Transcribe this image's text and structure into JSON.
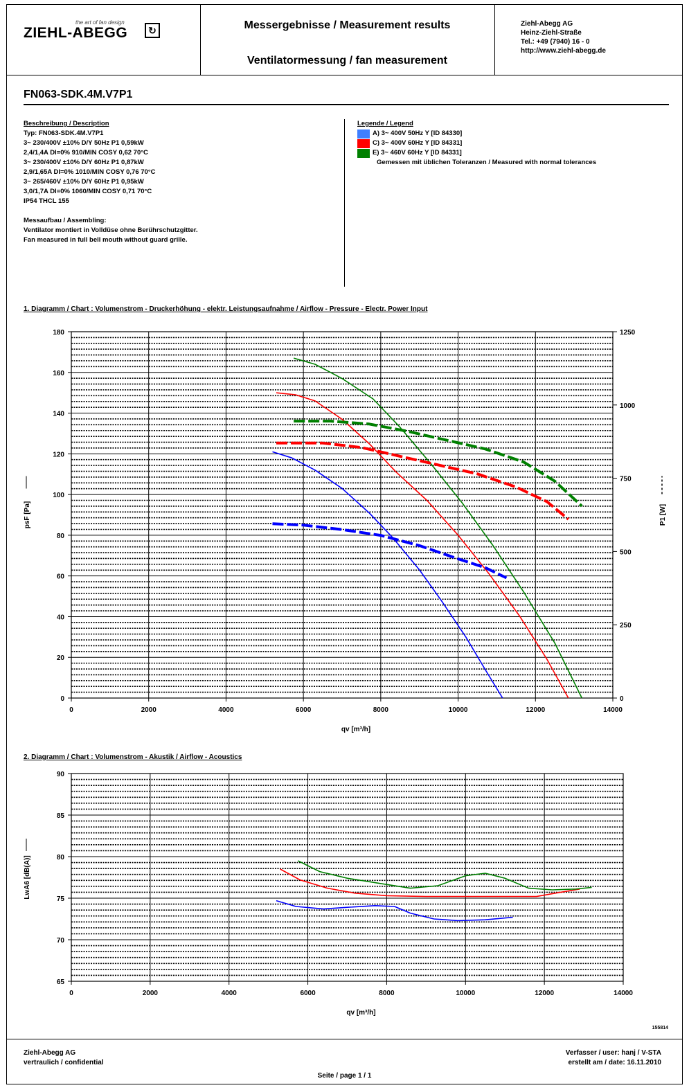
{
  "header": {
    "logo_tagline": "the art of fan design",
    "logo_text": "ZIEHL-ABEGG",
    "title1": "Messergebnisse / Measurement results",
    "title2": "Ventilatormessung / fan measurement",
    "address": [
      "Ziehl-Abegg AG",
      "Heinz-Ziehl-Straße",
      "Tel.: +49 (7940) 16 - 0",
      "http://www.ziehl-abegg.de"
    ]
  },
  "model": "FN063-SDK.4M.V7P1",
  "description": {
    "heading": "Beschreibung / Description",
    "lines": [
      "Typ: FN063-SDK.4M.V7P1",
      "3~ 230/400V ±10% D/Y 50Hz P1 0,59kW",
      "2,4/1,4A DI=0% 910/MIN COSY 0,62 70°C",
      "3~ 230/400V ±10% D/Y 60Hz P1 0,87kW",
      "2,9/1,65A DI=0% 1010/MIN COSY 0,76 70°C",
      "3~ 265/460V ±10% D/Y 60Hz P1 0,95kW",
      "3,0/1,7A DI=0% 1060/MIN COSY 0,71 70°C",
      "IP54 THCL 155",
      "",
      "Messaufbau / Assembling:",
      "Ventilator montiert in Volldüse ohne Berührschutzgitter.",
      "Fan measured in full bell mouth without guard grille."
    ]
  },
  "legend": {
    "heading": "Legende / Legend",
    "items": [
      {
        "label": "A) 3~ 400V 50Hz Y [ID 84330]",
        "color": "#3f7fff"
      },
      {
        "label": "C) 3~ 400V 60Hz Y [ID 84331]",
        "color": "#ff0000"
      },
      {
        "label": "E) 3~ 460V 60Hz Y [ID 84331]",
        "color": "#008000"
      }
    ],
    "note": "Gemessen mit üblichen Toleranzen / Measured with normal tolerances"
  },
  "chart_data": [
    {
      "type": "line",
      "title": "1. Diagramm / Chart :   Volumenstrom - Druckerhöhung - elektr. Leistungsaufnahme / Airflow - Pressure - Electr. Power Input",
      "xlabel": "qv [m³/h]",
      "ylabel": "psF [Pa]",
      "y2label": "P1 [W]",
      "xlim": [
        0,
        14000
      ],
      "ylim": [
        0,
        180
      ],
      "y2lim": [
        0,
        1250
      ],
      "xticks": [
        "0",
        "2000",
        "4000",
        "6000",
        "8000",
        "10000",
        "12000",
        "14000"
      ],
      "yticks": [
        "0",
        "20",
        "40",
        "60",
        "80",
        "100",
        "120",
        "140",
        "160",
        "180"
      ],
      "y2ticks": [
        "0",
        "250",
        "500",
        "750",
        "1000",
        "1250"
      ],
      "grid": true,
      "series": [
        {
          "curve": "pressure",
          "axis": "left",
          "color": "#0000ff",
          "style": "solid",
          "x": [
            5200,
            5700,
            6300,
            7000,
            7700,
            8300,
            9000,
            9600,
            10200,
            10700,
            11150
          ],
          "y": [
            121,
            118,
            112,
            103,
            91,
            79,
            63,
            47,
            30,
            14,
            0
          ]
        },
        {
          "curve": "pressure",
          "axis": "left",
          "color": "#ff0000",
          "style": "solid",
          "x": [
            5300,
            5800,
            6300,
            7000,
            7700,
            8400,
            9200,
            10000,
            10800,
            11600,
            12300,
            12850
          ],
          "y": [
            150,
            149,
            146,
            137,
            125,
            111,
            97,
            80,
            61,
            40,
            19,
            0
          ]
        },
        {
          "curve": "pressure",
          "axis": "left",
          "color": "#008000",
          "style": "solid",
          "x": [
            5750,
            6300,
            7000,
            7800,
            8500,
            9300,
            10100,
            10900,
            11700,
            12500,
            13200
          ],
          "y": [
            167,
            164,
            157,
            147,
            133,
            115,
            96,
            75,
            52,
            27,
            0
          ]
        },
        {
          "curve": "power",
          "axis": "right",
          "color": "#0000ff",
          "style": "dashed",
          "x": [
            5200,
            6000,
            7000,
            8000,
            9000,
            10000,
            10700,
            11250
          ],
          "y": [
            595,
            590,
            575,
            555,
            520,
            475,
            445,
            410
          ]
        },
        {
          "curve": "power",
          "axis": "right",
          "color": "#ff0000",
          "style": "dashed",
          "x": [
            5300,
            6500,
            7500,
            8500,
            9500,
            10500,
            11500,
            12300,
            12850
          ],
          "y": [
            870,
            870,
            855,
            825,
            795,
            765,
            720,
            670,
            610
          ]
        },
        {
          "curve": "power",
          "axis": "right",
          "color": "#008000",
          "style": "dashed",
          "x": [
            5750,
            6700,
            7700,
            8700,
            9700,
            10700,
            11700,
            12500,
            13200
          ],
          "y": [
            945,
            945,
            935,
            910,
            880,
            850,
            805,
            740,
            655
          ]
        }
      ]
    },
    {
      "type": "line",
      "title": "2. Diagramm / Chart :   Volumenstrom - Akustik / Airflow - Acoustics",
      "xlabel": "qv [m³/h]",
      "ylabel": "LwA6 [dB(A)]",
      "xlim": [
        0,
        14000
      ],
      "ylim": [
        65,
        90
      ],
      "xticks": [
        "0",
        "2000",
        "4000",
        "6000",
        "8000",
        "10000",
        "12000",
        "14000"
      ],
      "yticks": [
        "65",
        "70",
        "75",
        "80",
        "85",
        "90"
      ],
      "grid": true,
      "series": [
        {
          "color": "#0000ff",
          "style": "solid",
          "x": [
            5200,
            5700,
            6400,
            7000,
            7700,
            8200,
            8600,
            9200,
            9800,
            10500,
            11200
          ],
          "y": [
            74.7,
            74.0,
            73.7,
            73.9,
            74.1,
            74.0,
            73.2,
            72.5,
            72.3,
            72.4,
            72.7
          ]
        },
        {
          "color": "#ff0000",
          "style": "solid",
          "x": [
            5300,
            5800,
            6500,
            7200,
            8000,
            9000,
            10000,
            11000,
            11800,
            12400,
            12900
          ],
          "y": [
            78.5,
            77.2,
            76.2,
            75.6,
            75.3,
            75.2,
            75.2,
            75.2,
            75.2,
            75.7,
            76.1
          ]
        },
        {
          "color": "#008000",
          "style": "solid",
          "x": [
            5750,
            6300,
            7000,
            7800,
            8600,
            9300,
            10000,
            10500,
            11000,
            11600,
            12200,
            12800,
            13200
          ],
          "y": [
            79.5,
            78.2,
            77.4,
            76.8,
            76.2,
            76.5,
            77.7,
            78.0,
            77.4,
            76.2,
            76.0,
            76.1,
            76.3
          ]
        }
      ]
    }
  ],
  "doc_number": "155814",
  "footer": {
    "left": [
      "Ziehl-Abegg AG",
      "vertraulich / confidential"
    ],
    "right": [
      "Verfasser / user: hanj / V-STA",
      "erstellt am / date: 16.11.2010"
    ],
    "center": "Seite / page 1 / 1"
  }
}
